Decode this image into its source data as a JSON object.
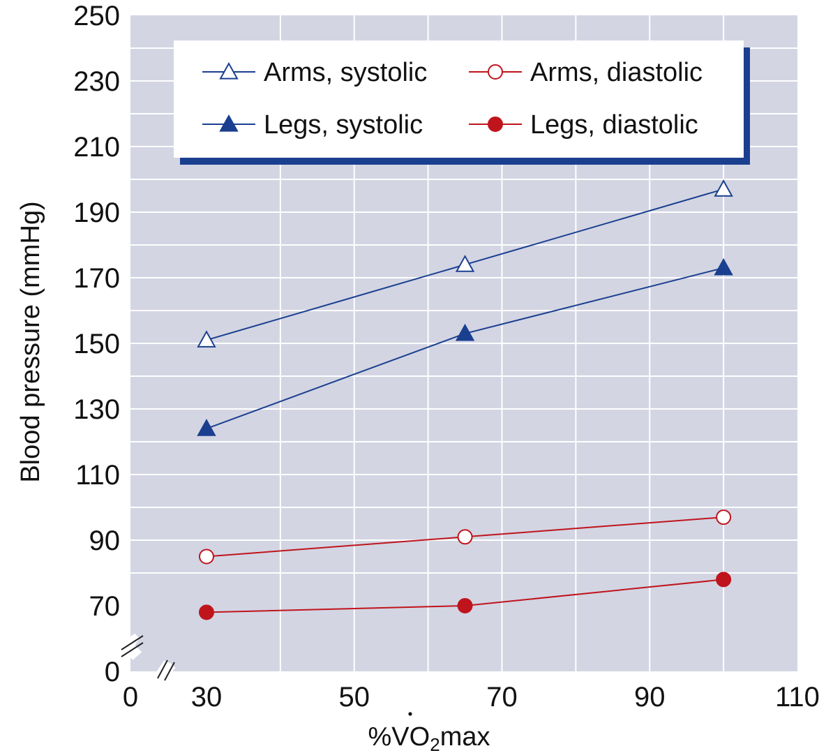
{
  "chart_data": {
    "type": "line",
    "xlabel_prefix": "%",
    "xlabel_v": "V",
    "xlabel_o": "O",
    "xlabel_sub": "2",
    "xlabel_suffix": "max",
    "ylabel": "Blood pressure (mmHg)",
    "xlim": [
      0,
      110
    ],
    "ylim": [
      0,
      250
    ],
    "axis_break": true,
    "x_ticks": [
      "0",
      "30",
      "50",
      "70",
      "90",
      "110"
    ],
    "y_ticks": [
      "0",
      "70",
      "90",
      "110",
      "130",
      "150",
      "170",
      "190",
      "210",
      "230",
      "250"
    ],
    "grid": true,
    "legend_position": "top",
    "colors": {
      "background": "#d3d5e3",
      "blue": "#1a3f8f",
      "red": "#c0141c"
    },
    "series": [
      {
        "name": "Arms, systolic",
        "color": "#1a3f8f",
        "marker": "triangle-open",
        "x": [
          30,
          65,
          100
        ],
        "y": [
          151,
          174,
          197
        ]
      },
      {
        "name": "Arms, diastolic",
        "color": "#c0141c",
        "marker": "circle-open",
        "x": [
          30,
          65,
          100
        ],
        "y": [
          85,
          91,
          97
        ]
      },
      {
        "name": "Legs, systolic",
        "color": "#1a3f8f",
        "marker": "triangle-filled",
        "x": [
          30,
          65,
          100
        ],
        "y": [
          124,
          153,
          173
        ]
      },
      {
        "name": "Legs, diastolic",
        "color": "#c0141c",
        "marker": "circle-filled",
        "x": [
          30,
          65,
          100
        ],
        "y": [
          68,
          70,
          78
        ]
      }
    ]
  }
}
